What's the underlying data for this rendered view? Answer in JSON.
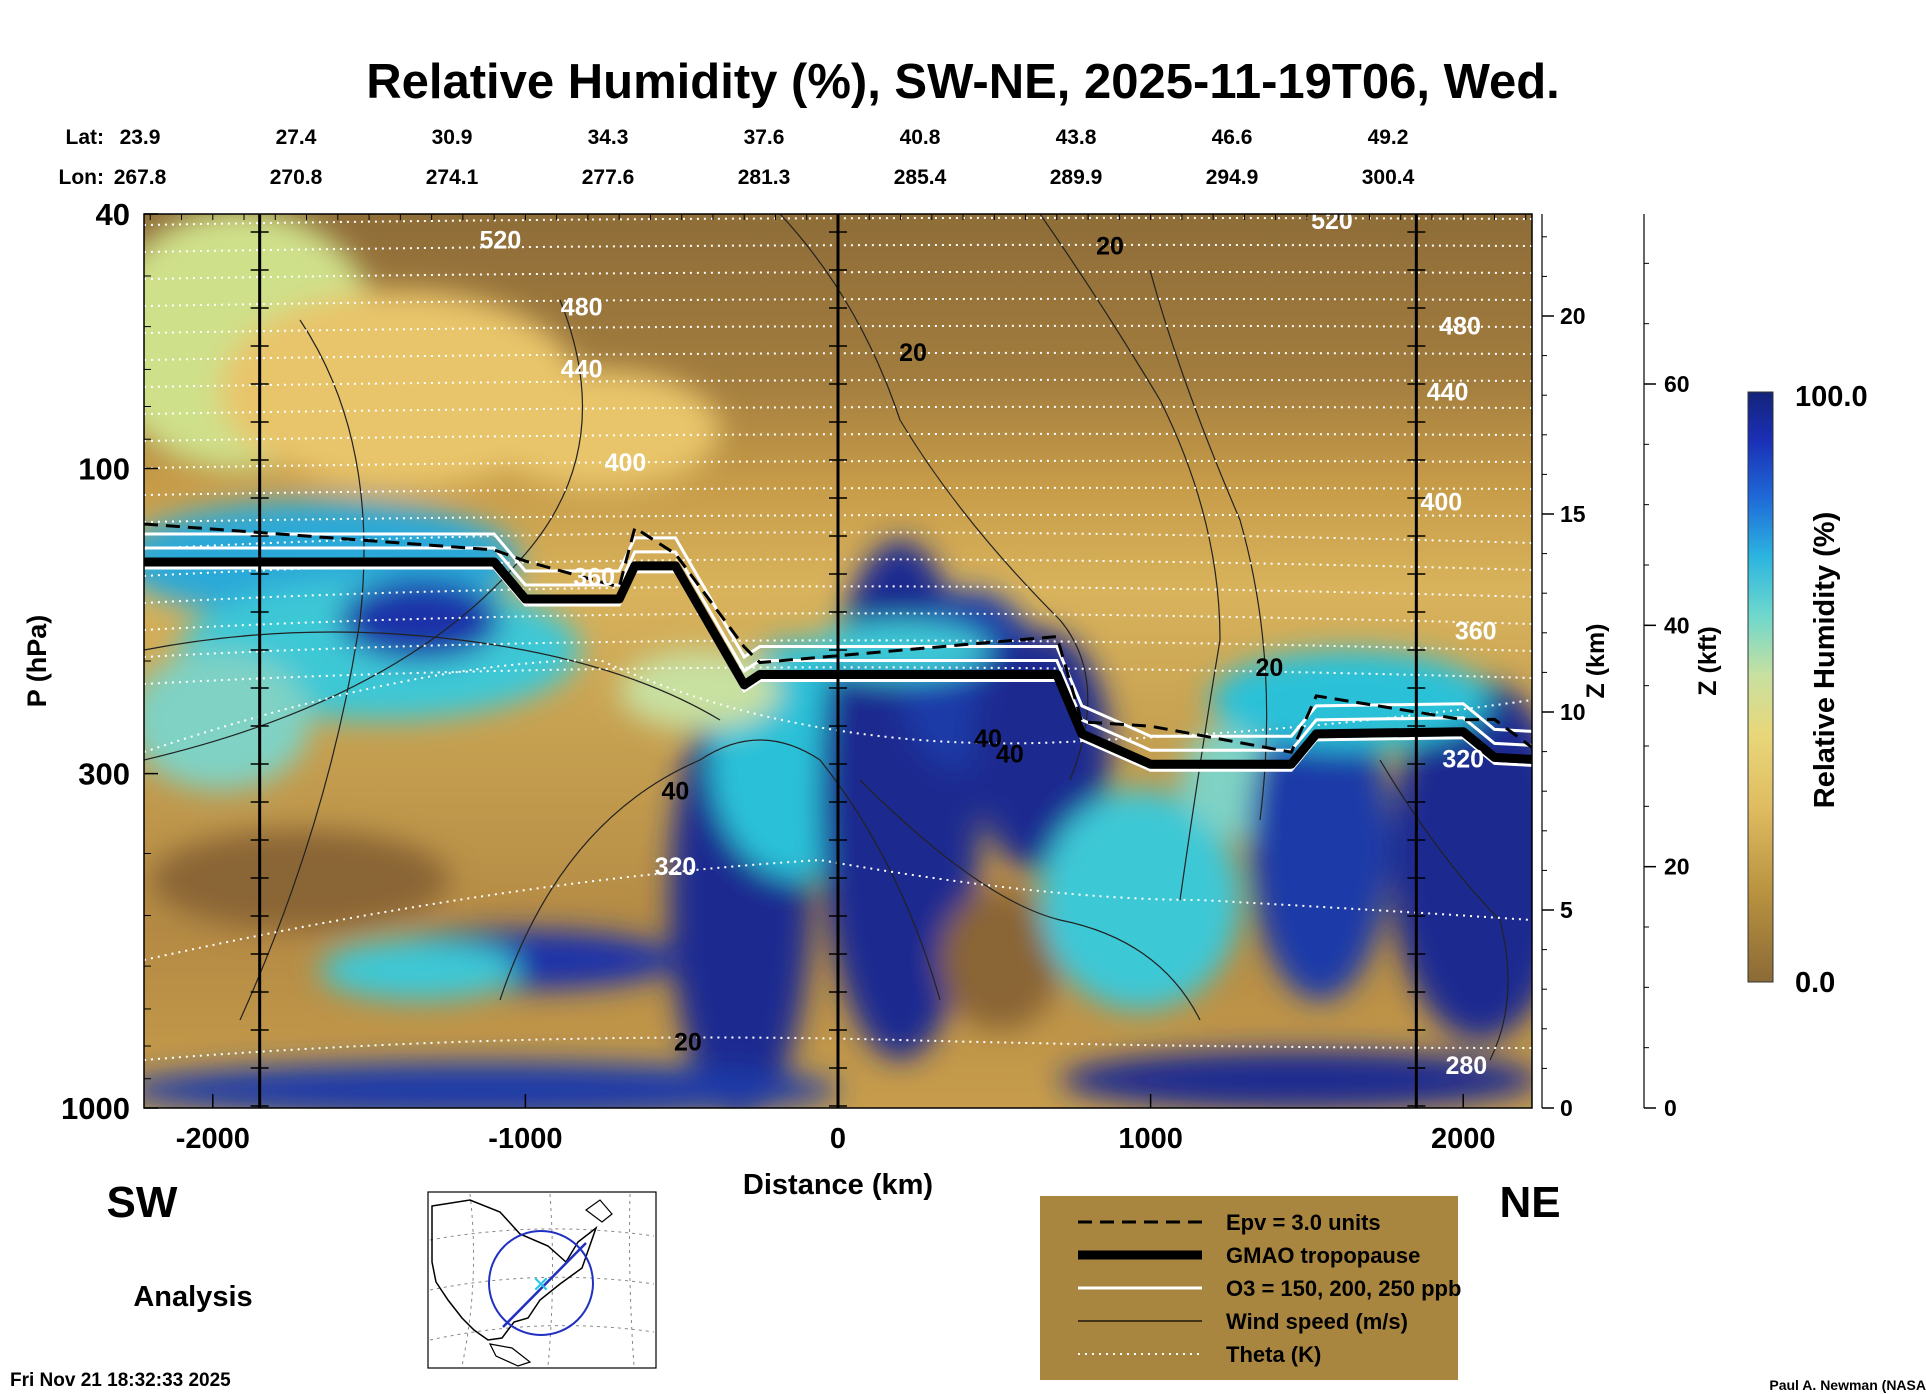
{
  "chart_data": {
    "type": "heatmap",
    "title": "Relative Humidity (%), SW-NE, 2025-11-19T06, Wed.",
    "xlabel": "Distance (km)",
    "ylabel": "P (hPa)",
    "z_km_label": "Z (km)",
    "z_kft_label": "Z (kft)",
    "xlim": [
      -2220,
      2220
    ],
    "ylim_hpa": [
      1000,
      40
    ],
    "y_scale": "log",
    "x_ticks": [
      -2000,
      -1000,
      0,
      1000,
      2000
    ],
    "y_ticks": [
      1000,
      300,
      100,
      40
    ],
    "z_km_ticks": [
      0,
      5,
      10,
      15,
      20
    ],
    "z_kft_ticks": [
      0,
      20,
      40,
      60
    ],
    "lat_label": "Lat:",
    "lon_label": "Lon:",
    "lat_values": [
      "23.9",
      "27.4",
      "30.9",
      "34.3",
      "37.6",
      "40.8",
      "43.8",
      "46.6",
      "49.2"
    ],
    "lon_values": [
      "267.8",
      "270.8",
      "274.1",
      "277.6",
      "281.3",
      "285.4",
      "289.9",
      "294.9",
      "300.4"
    ],
    "direction_left": "SW",
    "direction_right": "NE",
    "colorbar": {
      "label": "Relative Humidity (%)",
      "min": "0.0",
      "max": "100.0"
    },
    "tropopause_hpa": [
      [
        -2220,
        140
      ],
      [
        -1100,
        140
      ],
      [
        -1000,
        160
      ],
      [
        -700,
        160
      ],
      [
        -650,
        142
      ],
      [
        -520,
        142
      ],
      [
        -300,
        218
      ],
      [
        -250,
        210
      ],
      [
        700,
        210
      ],
      [
        780,
        260
      ],
      [
        1000,
        290
      ],
      [
        1450,
        290
      ],
      [
        1530,
        260
      ],
      [
        2000,
        258
      ],
      [
        2100,
        283
      ],
      [
        2220,
        285
      ]
    ],
    "theta_levels": [
      {
        "label": "520",
        "x": -1080,
        "p": 44
      },
      {
        "label": "480",
        "x": -820,
        "p": 56
      },
      {
        "label": "440",
        "x": -820,
        "p": 70
      },
      {
        "label": "400",
        "x": -680,
        "p": 98
      },
      {
        "label": "360",
        "x": -780,
        "p": 148
      },
      {
        "label": "320",
        "x": -520,
        "p": 420
      },
      {
        "label": "520",
        "x": 1580,
        "p": 41
      },
      {
        "label": "480",
        "x": 1990,
        "p": 60
      },
      {
        "label": "440",
        "x": 1950,
        "p": 76
      },
      {
        "label": "400",
        "x": 1930,
        "p": 113
      },
      {
        "label": "360",
        "x": 2040,
        "p": 180
      },
      {
        "label": "320",
        "x": 2000,
        "p": 285
      },
      {
        "label": "280",
        "x": 2010,
        "p": 860
      }
    ],
    "wind_labels": [
      {
        "label": "20",
        "x": 870,
        "p": 45
      },
      {
        "label": "20",
        "x": 240,
        "p": 66
      },
      {
        "label": "20",
        "x": 1380,
        "p": 205
      },
      {
        "label": "40",
        "x": -520,
        "p": 320
      },
      {
        "label": "40",
        "x": 480,
        "p": 265
      },
      {
        "label": "40",
        "x": 550,
        "p": 280
      },
      {
        "label": "20",
        "x": -480,
        "p": 790
      }
    ],
    "legend": [
      {
        "label": "Epv = 3.0 units",
        "style": "dashed"
      },
      {
        "label": "GMAO tropopause",
        "style": "thick"
      },
      {
        "label": "O3 = 150, 200, 250 ppb",
        "style": "white"
      },
      {
        "label": "Wind speed (m/s)",
        "style": "thin"
      },
      {
        "label": "Theta (K)",
        "style": "dotted"
      }
    ]
  },
  "labels": {
    "analysis": "Analysis",
    "timestamp": "Fri Nov 21 18:32:33 2025",
    "credit": "Paul A. Newman (NASA"
  },
  "colors": {
    "dry": "#8b6a36",
    "mid": "#d9b35c",
    "moist": "#3ec8d6",
    "saturated": "#1a2a90",
    "legend_bg": "#a88640"
  }
}
